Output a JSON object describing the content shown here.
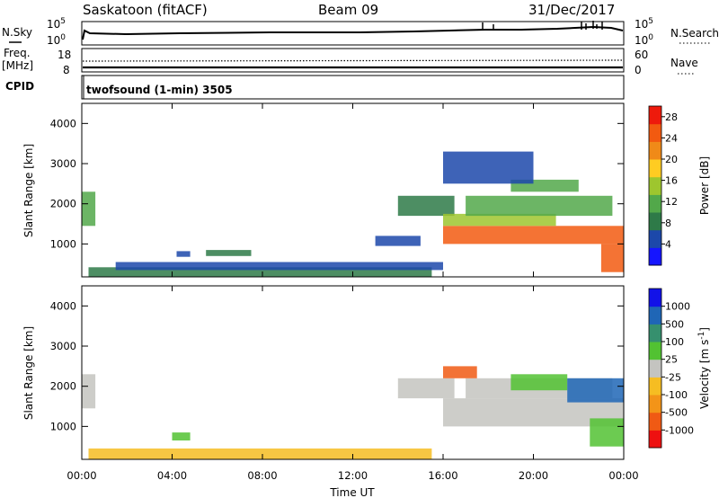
{
  "header": {
    "site": "Saskatoon (fitACF)",
    "beam": "Beam 09",
    "date": "31/Dec/2017"
  },
  "status_rows": {
    "nsky_label": "N.Sky",
    "nsearch_label": "N.Search",
    "freq_label": "Freq.",
    "freq_unit": "[MHz]",
    "nave_label": "Nave",
    "cpid_label": "CPID",
    "cpid_text": "twofsound (1-min) 3505",
    "noise_left_ticks": [
      "10^5",
      "10^0"
    ],
    "noise_right_ticks": [
      "10^5",
      "10^0"
    ],
    "freq_left_ticks": [
      "18",
      "8"
    ],
    "freq_right_ticks": [
      "60",
      "0"
    ]
  },
  "colors": {
    "power_scale": [
      "#1515ff",
      "#1c48aa",
      "#2e7a48",
      "#52a84a",
      "#9ec62e",
      "#ffcc22",
      "#f08a18",
      "#f25a10",
      "#ee1a0c"
    ],
    "velocity_scale": [
      "#ee1010",
      "#f05a14",
      "#f39418",
      "#f6bd22",
      "#c4c4c0",
      "#52c232",
      "#36906e",
      "#1f66b6",
      "#1212e8"
    ]
  },
  "chart_data": [
    {
      "type": "heatmap",
      "panel": "power",
      "xlabel": "",
      "ylabel": "Slant Range [km]",
      "x_ticks": [],
      "y_ticks": [
        "1000",
        "2000",
        "3000",
        "4000"
      ],
      "xlim_hours": [
        0,
        24
      ],
      "ylim_km": [
        180,
        4500
      ],
      "colorbar_label": "Power [dB]",
      "colorbar_ticks": [
        "4",
        "8",
        "12",
        "16",
        "20",
        "24",
        "28"
      ],
      "colorbar_range": [
        0,
        30
      ],
      "regions": [
        {
          "t": [
            0.0,
            0.6
          ],
          "r": [
            1450,
            2300
          ],
          "level": 3
        },
        {
          "t": [
            0.3,
            15.5
          ],
          "r": [
            180,
            420
          ],
          "level": 2
        },
        {
          "t": [
            1.5,
            16.0
          ],
          "r": [
            350,
            550
          ],
          "level": 1
        },
        {
          "t": [
            4.2,
            4.8
          ],
          "r": [
            680,
            820
          ],
          "level": 1
        },
        {
          "t": [
            5.5,
            7.5
          ],
          "r": [
            700,
            850
          ],
          "level": 2
        },
        {
          "t": [
            13.0,
            15.0
          ],
          "r": [
            950,
            1200
          ],
          "level": 1
        },
        {
          "t": [
            14.0,
            16.5
          ],
          "r": [
            1700,
            2200
          ],
          "level": 2
        },
        {
          "t": [
            16.0,
            24.0
          ],
          "r": [
            1000,
            1450
          ],
          "level": 7
        },
        {
          "t": [
            16.0,
            21.0
          ],
          "r": [
            1450,
            1750
          ],
          "level": 4
        },
        {
          "t": [
            17.0,
            23.5
          ],
          "r": [
            1700,
            2200
          ],
          "level": 3
        },
        {
          "t": [
            19.0,
            22.0
          ],
          "r": [
            2300,
            2600
          ],
          "level": 3
        },
        {
          "t": [
            23.0,
            24.0
          ],
          "r": [
            300,
            1000
          ],
          "level": 7
        },
        {
          "t": [
            16.0,
            20.0
          ],
          "r": [
            2500,
            3300
          ],
          "level": 1
        }
      ]
    },
    {
      "type": "heatmap",
      "panel": "velocity",
      "xlabel": "Time UT",
      "ylabel": "Slant Range [km]",
      "x_ticks": [
        "00:00",
        "04:00",
        "08:00",
        "12:00",
        "16:00",
        "20:00",
        "00:00"
      ],
      "y_ticks": [
        "1000",
        "2000",
        "3000",
        "4000"
      ],
      "xlim_hours": [
        0,
        24
      ],
      "ylim_km": [
        180,
        4500
      ],
      "colorbar_label": "Velocity [m s^-1]",
      "colorbar_ticks": [
        "-1000",
        "-500",
        "-100",
        "-25",
        "25",
        "100",
        "500",
        "1000"
      ],
      "regions": [
        {
          "t": [
            0.0,
            0.6
          ],
          "r": [
            1450,
            2300
          ],
          "level": 4
        },
        {
          "t": [
            0.3,
            15.5
          ],
          "r": [
            180,
            450
          ],
          "level": 3
        },
        {
          "t": [
            4.0,
            4.8
          ],
          "r": [
            650,
            850
          ],
          "level": 5
        },
        {
          "t": [
            14.0,
            16.5
          ],
          "r": [
            1700,
            2200
          ],
          "level": 4
        },
        {
          "t": [
            16.0,
            24.0
          ],
          "r": [
            1000,
            1700
          ],
          "level": 4
        },
        {
          "t": [
            17.0,
            23.5
          ],
          "r": [
            1700,
            2200
          ],
          "level": 4
        },
        {
          "t": [
            16.0,
            17.5
          ],
          "r": [
            2200,
            2500
          ],
          "level": 1
        },
        {
          "t": [
            19.0,
            21.5
          ],
          "r": [
            1900,
            2300
          ],
          "level": 5
        },
        {
          "t": [
            21.5,
            24.0
          ],
          "r": [
            1600,
            2200
          ],
          "level": 7
        },
        {
          "t": [
            22.5,
            24.0
          ],
          "r": [
            500,
            1200
          ],
          "level": 5
        }
      ]
    }
  ]
}
